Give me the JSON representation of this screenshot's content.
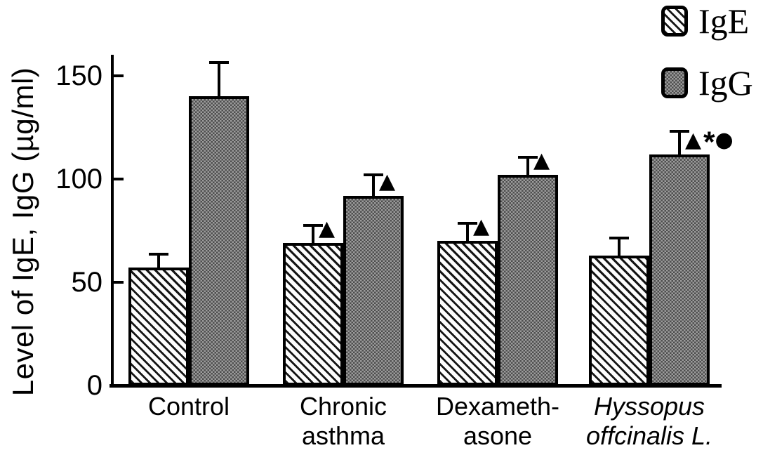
{
  "chart_data": {
    "type": "bar",
    "title": "",
    "ylabel": "Level of IgE, IgG (µg/ml)",
    "xlabel": "",
    "ylim": [
      0,
      160
    ],
    "yticks": [
      0,
      50,
      100,
      150
    ],
    "grid": false,
    "legend_position": "top-right",
    "categories": [
      "Control",
      "Chronic asthma",
      "Dexameth-asone",
      "Hyssopus offcinalis L."
    ],
    "category_lines": [
      [
        "Control"
      ],
      [
        "Chronic",
        "asthma"
      ],
      [
        "Dexameth-",
        "asone"
      ],
      [
        "Hyssopus",
        "offcinalis L."
      ]
    ],
    "category_italic": [
      false,
      false,
      false,
      true
    ],
    "series": [
      {
        "name": "IgE",
        "pattern": "diagonal-hatch",
        "values": [
          57,
          69,
          70,
          63
        ],
        "errors": [
          6,
          8,
          8,
          8
        ],
        "annotations": [
          "",
          "▲",
          "▲",
          ""
        ]
      },
      {
        "name": "IgG",
        "pattern": "gray-checker",
        "values": [
          140,
          92,
          102,
          112
        ],
        "errors": [
          16,
          10,
          8,
          11
        ],
        "annotations": [
          "",
          "▲",
          "▲",
          "▲*●"
        ]
      }
    ]
  },
  "colors": {
    "background": "#ffffff",
    "text": "#000000",
    "bar_outline": "#000000",
    "ige_fill": "#ffffff",
    "ige_stripe": "#161616",
    "igg_dark": "#4e4e4e",
    "igg_light": "#9c9c9c"
  }
}
